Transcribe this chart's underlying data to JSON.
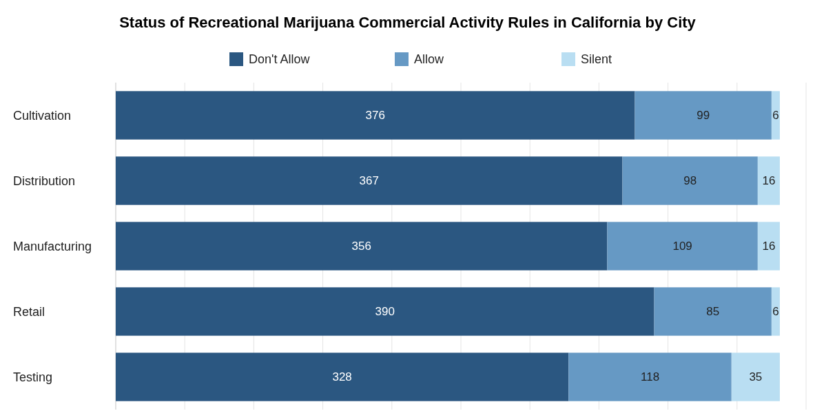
{
  "chart_data": {
    "type": "bar",
    "orientation": "horizontal",
    "stacked": true,
    "title": "Status of Recreational Marijuana Commercial Activity Rules in California by City",
    "categories": [
      "Cultivation",
      "Distribution",
      "Manufacturing",
      "Retail",
      "Testing"
    ],
    "series": [
      {
        "name": "Don't Allow",
        "color": "#2b5781",
        "values": [
          376,
          367,
          356,
          390,
          328
        ]
      },
      {
        "name": "Allow",
        "color": "#6699c4",
        "values": [
          99,
          98,
          109,
          85,
          118
        ]
      },
      {
        "name": "Silent",
        "color": "#b9def2",
        "values": [
          6,
          16,
          16,
          6,
          35
        ]
      }
    ],
    "xlim": [
      0,
      500
    ],
    "xticks": [
      {
        "value": 0,
        "label": null
      },
      {
        "value": 50,
        "label": null
      },
      {
        "value": 100,
        "label": null
      },
      {
        "value": 150,
        "label": null
      },
      {
        "value": 200,
        "label": null
      },
      {
        "value": 250,
        "label": null
      },
      {
        "value": 300,
        "label": null
      },
      {
        "value": 350,
        "label": null
      },
      {
        "value": 400,
        "label": null
      },
      {
        "value": 450,
        "label": null
      },
      {
        "value": 500,
        "label": null
      }
    ],
    "tick_labels": "y",
    "grid": "x",
    "legend": "top",
    "data_labels": true
  }
}
